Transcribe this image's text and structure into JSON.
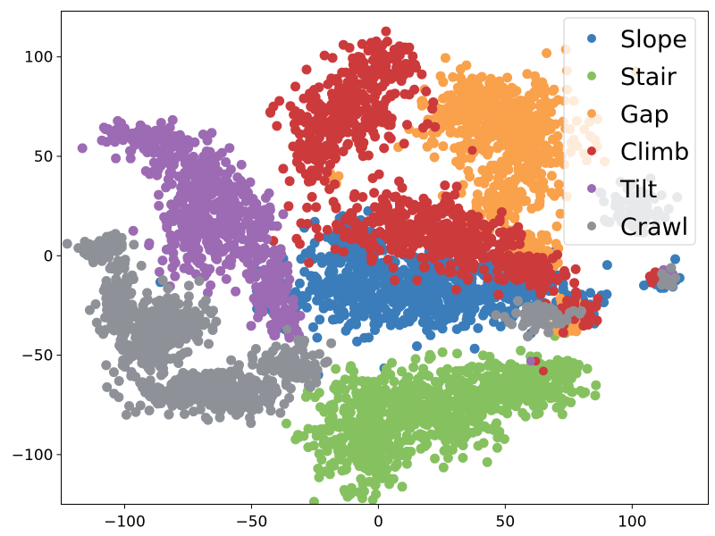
{
  "chart_data": {
    "type": "scatter",
    "title": "",
    "xlabel": "",
    "ylabel": "",
    "xlim": [
      -125,
      130
    ],
    "ylim": [
      -125,
      123
    ],
    "xticks": [
      -100,
      -50,
      0,
      50,
      100
    ],
    "yticks": [
      -100,
      -50,
      0,
      50,
      100
    ],
    "xtick_labels": [
      "−100",
      "−50",
      "0",
      "50",
      "100"
    ],
    "ytick_labels": [
      "−100",
      "−50",
      "0",
      "50",
      "100"
    ],
    "grid": false,
    "legend_position": "top-right",
    "series": [
      {
        "name": "Slope",
        "color": "#3a7dba",
        "clusters": [
          {
            "cx": 15,
            "cy": -18,
            "sx": 25,
            "sy": 10,
            "n": 650
          },
          {
            "cx": -10,
            "cy": 5,
            "sx": 8,
            "sy": 8,
            "n": 120
          },
          {
            "cx": 55,
            "cy": -14,
            "sx": 8,
            "sy": 6,
            "n": 90
          },
          {
            "cx": 80,
            "cy": -26,
            "sx": 4,
            "sy": 4,
            "n": 25
          },
          {
            "cx": 112,
            "cy": -12,
            "sx": 3,
            "sy": 3,
            "n": 20
          }
        ]
      },
      {
        "name": "Stair",
        "color": "#86c160",
        "clusters": [
          {
            "cx": -5,
            "cy": -88,
            "sx": 10,
            "sy": 15,
            "n": 350
          },
          {
            "cx": 18,
            "cy": -75,
            "sx": 12,
            "sy": 10,
            "n": 250
          },
          {
            "cx": 35,
            "cy": -80,
            "sx": 8,
            "sy": 10,
            "n": 120
          },
          {
            "cx": 55,
            "cy": -65,
            "sx": 12,
            "sy": 6,
            "n": 220
          },
          {
            "cx": 70,
            "cy": -58,
            "sx": 5,
            "sy": 4,
            "n": 60
          },
          {
            "cx": 72,
            "cy": -35,
            "sx": 3,
            "sy": 3,
            "n": 15
          }
        ]
      },
      {
        "name": "Gap",
        "color": "#f9a14b",
        "clusters": [
          {
            "cx": 40,
            "cy": 72,
            "sx": 12,
            "sy": 10,
            "n": 250
          },
          {
            "cx": 58,
            "cy": 60,
            "sx": 12,
            "sy": 15,
            "n": 250
          },
          {
            "cx": 50,
            "cy": 28,
            "sx": 8,
            "sy": 10,
            "n": 120
          },
          {
            "cx": 62,
            "cy": 0,
            "sx": 4,
            "sy": 5,
            "n": 50
          },
          {
            "cx": 75,
            "cy": -30,
            "sx": 4,
            "sy": 4,
            "n": 40
          },
          {
            "cx": -17,
            "cy": 38,
            "sx": 2,
            "sy": 2,
            "n": 8
          }
        ]
      },
      {
        "name": "Climb",
        "color": "#cc3a3c",
        "clusters": [
          {
            "cx": -12,
            "cy": 72,
            "sx": 14,
            "sy": 10,
            "n": 220
          },
          {
            "cx": -25,
            "cy": 52,
            "sx": 5,
            "sy": 8,
            "n": 80
          },
          {
            "cx": 0,
            "cy": 95,
            "sx": 8,
            "sy": 6,
            "n": 100
          },
          {
            "cx": 12,
            "cy": 15,
            "sx": 16,
            "sy": 8,
            "n": 260
          },
          {
            "cx": 35,
            "cy": 5,
            "sx": 12,
            "sy": 7,
            "n": 160
          },
          {
            "cx": 62,
            "cy": -8,
            "sx": 6,
            "sy": 5,
            "n": 80
          },
          {
            "cx": 78,
            "cy": -28,
            "sx": 4,
            "sy": 4,
            "n": 35
          },
          {
            "cx": 110,
            "cy": -12,
            "sx": 3,
            "sy": 2,
            "n": 15
          }
        ]
      },
      {
        "name": "Tilt",
        "color": "#9c6bb3",
        "clusters": [
          {
            "cx": -95,
            "cy": 60,
            "sx": 6,
            "sy": 4,
            "n": 80
          },
          {
            "cx": -80,
            "cy": 52,
            "sx": 7,
            "sy": 6,
            "n": 100
          },
          {
            "cx": -68,
            "cy": 35,
            "sx": 7,
            "sy": 8,
            "n": 120
          },
          {
            "cx": -72,
            "cy": 10,
            "sx": 8,
            "sy": 10,
            "n": 150
          },
          {
            "cx": -52,
            "cy": 15,
            "sx": 6,
            "sy": 12,
            "n": 120
          },
          {
            "cx": -43,
            "cy": -15,
            "sx": 5,
            "sy": 10,
            "n": 110
          },
          {
            "cx": -36,
            "cy": -33,
            "sx": 3,
            "sy": 4,
            "n": 30
          },
          {
            "cx": 113,
            "cy": -10,
            "sx": 2,
            "sy": 2,
            "n": 10
          }
        ]
      },
      {
        "name": "Crawl",
        "color": "#8e9298",
        "clusters": [
          {
            "cx": -108,
            "cy": 5,
            "sx": 5,
            "sy": 3,
            "n": 60
          },
          {
            "cx": -102,
            "cy": -20,
            "sx": 4,
            "sy": 10,
            "n": 100
          },
          {
            "cx": -90,
            "cy": -42,
            "sx": 7,
            "sy": 9,
            "n": 180
          },
          {
            "cx": -80,
            "cy": -32,
            "sx": 7,
            "sy": 7,
            "n": 90
          },
          {
            "cx": -75,
            "cy": -68,
            "sx": 10,
            "sy": 6,
            "n": 180
          },
          {
            "cx": -55,
            "cy": -70,
            "sx": 9,
            "sy": 6,
            "n": 150
          },
          {
            "cx": -35,
            "cy": -55,
            "sx": 6,
            "sy": 6,
            "n": 100
          },
          {
            "cx": 63,
            "cy": -30,
            "sx": 6,
            "sy": 3,
            "n": 60
          },
          {
            "cx": 100,
            "cy": 25,
            "sx": 6,
            "sy": 6,
            "n": 90
          },
          {
            "cx": 115,
            "cy": -12,
            "sx": 2,
            "sy": 2,
            "n": 15
          }
        ]
      }
    ],
    "highlighted_points": [
      {
        "series": "Climb",
        "x": 37,
        "y": 53
      },
      {
        "series": "Climb",
        "x": 65,
        "y": -58
      },
      {
        "series": "Climb",
        "x": 62,
        "y": -53
      },
      {
        "series": "Tilt",
        "x": 60,
        "y": -53
      },
      {
        "series": "Crawl",
        "x": -36,
        "y": -37
      }
    ]
  }
}
